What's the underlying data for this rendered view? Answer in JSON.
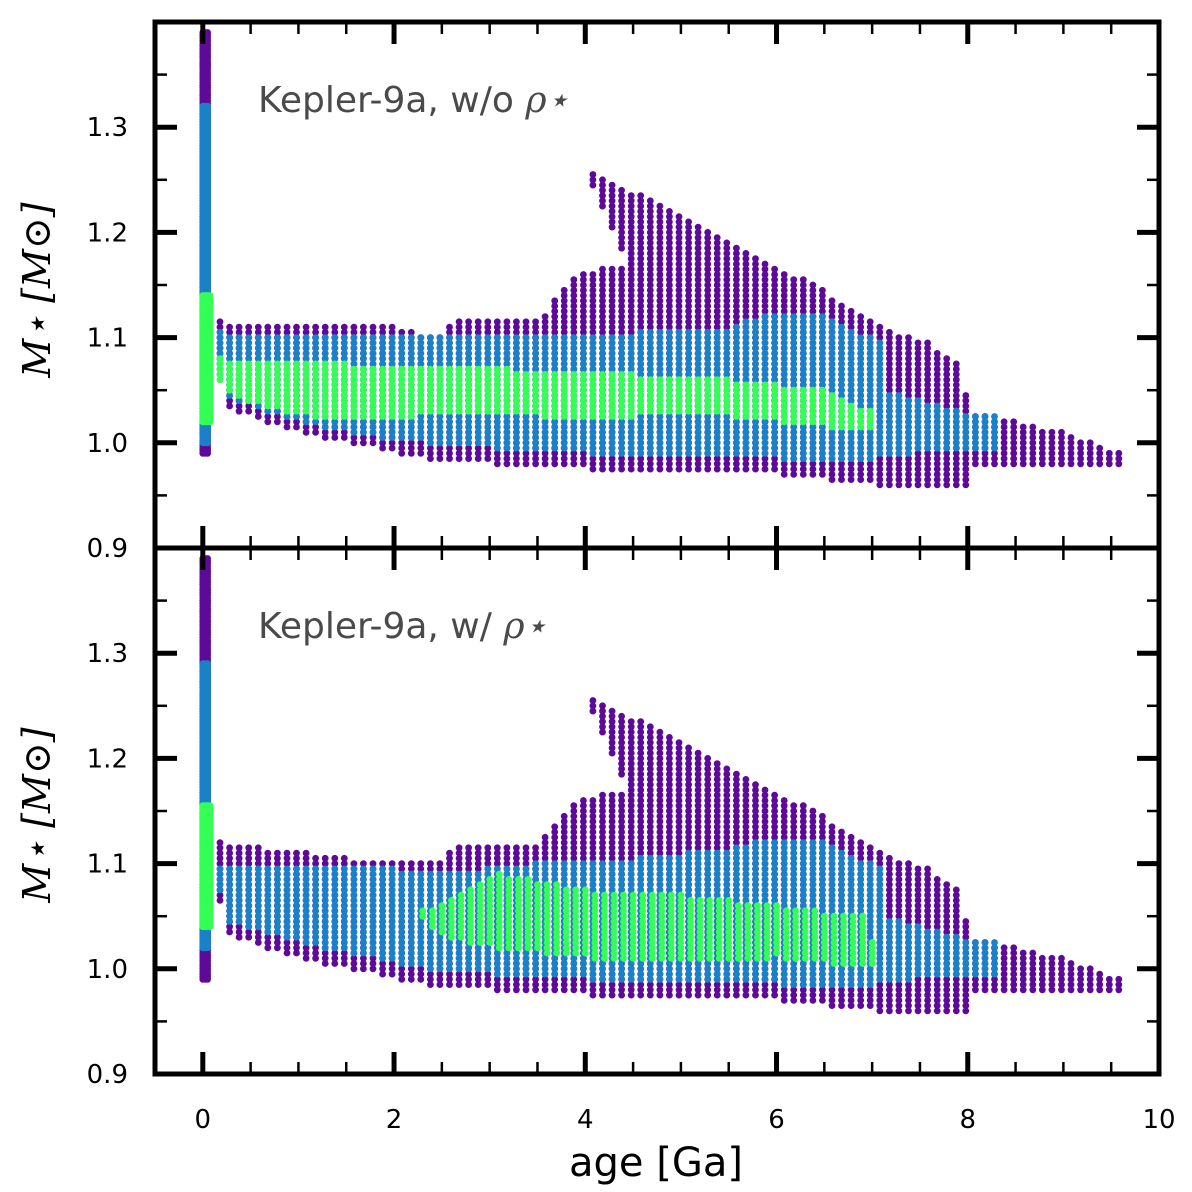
{
  "chart_data": {
    "type": "scatter",
    "xlabel": "age [Ga]",
    "xlim": [
      -0.5,
      10
    ],
    "x_ticks": [
      "0",
      "2",
      "4",
      "6",
      "8",
      "10"
    ],
    "colors": {
      "purple": "#5e0a99",
      "blue": "#1a80c8",
      "green": "#33ff55"
    },
    "panels": [
      {
        "annotation": "Kepler-9a, w/o",
        "annotation_symbol": "ρ⋆",
        "ylabel": "M⋆ [M⊙]",
        "ylim": [
          0.9,
          1.4
        ],
        "y_ticks": [
          "0.9",
          "1.0",
          "1.1",
          "1.2",
          "1.3"
        ],
        "series": [
          {
            "name": "purple",
            "polygons": [
              [
                [
                  0.18,
                  1.115
                ],
                [
                  2.0,
                  1.11
                ],
                [
                  2.5,
                  1.1
                ],
                [
                  2.6,
                  1.115
                ],
                [
                  3.5,
                  1.115
                ],
                [
                  3.9,
                  1.16
                ],
                [
                  4.3,
                  1.17
                ],
                [
                  4.5,
                  1.16
                ],
                [
                  4.3,
                  1.2
                ],
                [
                  4.0,
                  1.26
                ],
                [
                  4.7,
                  1.23
                ],
                [
                  5.5,
                  1.19
                ],
                [
                  6.4,
                  1.15
                ],
                [
                  7.1,
                  1.11
                ],
                [
                  7.6,
                  1.095
                ],
                [
                  7.95,
                  1.07
                ],
                [
                  8.0,
                  1.03
                ],
                [
                  9.0,
                  1.01
                ],
                [
                  9.6,
                  0.99
                ],
                [
                  9.6,
                  0.98
                ],
                [
                  8.0,
                  0.975
                ],
                [
                  8.0,
                  0.96
                ],
                [
                  7.0,
                  0.96
                ],
                [
                  6.0,
                  0.97
                ],
                [
                  5.0,
                  0.975
                ],
                [
                  4.0,
                  0.975
                ],
                [
                  3.0,
                  0.98
                ],
                [
                  2.3,
                  0.985
                ],
                [
                  1.8,
                  0.995
                ],
                [
                  1.2,
                  1.005
                ],
                [
                  0.6,
                  1.02
                ],
                [
                  0.25,
                  1.035
                ],
                [
                  0.18,
                  1.06
                ]
              ],
              [
                [
                  0.0,
                  1.39
                ],
                [
                  0.07,
                  1.39
                ],
                [
                  0.07,
                  0.99
                ],
                [
                  0.0,
                  0.99
                ]
              ]
            ]
          },
          {
            "name": "blue",
            "polygons": [
              [
                [
                  0.18,
                  1.105
                ],
                [
                  2.0,
                  1.1
                ],
                [
                  2.6,
                  1.1
                ],
                [
                  3.4,
                  1.1
                ],
                [
                  4.5,
                  1.105
                ],
                [
                  5.5,
                  1.11
                ],
                [
                  6.0,
                  1.125
                ],
                [
                  6.5,
                  1.12
                ],
                [
                  7.1,
                  1.095
                ],
                [
                  7.1,
                  1.05
                ],
                [
                  7.95,
                  1.03
                ],
                [
                  8.3,
                  1.025
                ],
                [
                  8.3,
                  0.995
                ],
                [
                  7.95,
                  0.995
                ],
                [
                  7.0,
                  0.985
                ],
                [
                  6.0,
                  0.985
                ],
                [
                  5.0,
                  0.99
                ],
                [
                  4.0,
                  0.99
                ],
                [
                  3.0,
                  0.995
                ],
                [
                  2.3,
                  1.0
                ],
                [
                  1.8,
                  1.005
                ],
                [
                  1.2,
                  1.015
                ],
                [
                  0.6,
                  1.03
                ],
                [
                  0.25,
                  1.045
                ],
                [
                  0.18,
                  1.07
                ]
              ],
              [
                [
                  0.0,
                  1.32
                ],
                [
                  0.07,
                  1.32
                ],
                [
                  0.07,
                  1.0
                ],
                [
                  0.0,
                  1.0
                ]
              ]
            ]
          },
          {
            "name": "green",
            "polygons": [
              [
                [
                  0.18,
                  1.08
                ],
                [
                  1.5,
                  1.075
                ],
                [
                  2.5,
                  1.07
                ],
                [
                  3.2,
                  1.07
                ],
                [
                  4.5,
                  1.065
                ],
                [
                  5.5,
                  1.06
                ],
                [
                  6.5,
                  1.05
                ],
                [
                  7.0,
                  1.03
                ],
                [
                  7.0,
                  1.01
                ],
                [
                  6.0,
                  1.02
                ],
                [
                  5.0,
                  1.03
                ],
                [
                  4.0,
                  1.02
                ],
                [
                  3.0,
                  1.03
                ],
                [
                  2.2,
                  1.025
                ],
                [
                  1.5,
                  1.02
                ],
                [
                  0.8,
                  1.03
                ],
                [
                  0.3,
                  1.045
                ],
                [
                  0.18,
                  1.055
                ]
              ],
              [
                [
                  0.0,
                  1.14
                ],
                [
                  0.08,
                  1.14
                ],
                [
                  0.08,
                  1.02
                ],
                [
                  0.0,
                  1.02
                ]
              ]
            ]
          }
        ]
      },
      {
        "annotation": "Kepler-9a, w/",
        "annotation_symbol": "ρ⋆",
        "ylabel": "M⋆ [M⊙]",
        "ylim": [
          0.9,
          1.4
        ],
        "y_ticks": [
          "0.9",
          "1.0",
          "1.1",
          "1.2",
          "1.3"
        ],
        "series": [
          {
            "name": "purple",
            "polygons": [
              [
                [
                  0.18,
                  1.12
                ],
                [
                  2.0,
                  1.1
                ],
                [
                  2.5,
                  1.1
                ],
                [
                  2.6,
                  1.115
                ],
                [
                  3.5,
                  1.12
                ],
                [
                  3.9,
                  1.16
                ],
                [
                  4.3,
                  1.17
                ],
                [
                  4.5,
                  1.16
                ],
                [
                  4.3,
                  1.2
                ],
                [
                  4.0,
                  1.26
                ],
                [
                  4.7,
                  1.23
                ],
                [
                  5.5,
                  1.19
                ],
                [
                  6.4,
                  1.15
                ],
                [
                  7.1,
                  1.11
                ],
                [
                  7.6,
                  1.095
                ],
                [
                  7.95,
                  1.07
                ],
                [
                  8.0,
                  1.03
                ],
                [
                  9.0,
                  1.01
                ],
                [
                  9.6,
                  0.99
                ],
                [
                  9.6,
                  0.98
                ],
                [
                  8.0,
                  0.975
                ],
                [
                  8.0,
                  0.96
                ],
                [
                  7.0,
                  0.96
                ],
                [
                  6.0,
                  0.97
                ],
                [
                  5.0,
                  0.975
                ],
                [
                  4.0,
                  0.975
                ],
                [
                  3.0,
                  0.98
                ],
                [
                  2.3,
                  0.985
                ],
                [
                  1.8,
                  0.995
                ],
                [
                  1.2,
                  1.005
                ],
                [
                  0.6,
                  1.02
                ],
                [
                  0.25,
                  1.035
                ],
                [
                  0.18,
                  1.06
                ]
              ],
              [
                [
                  0.0,
                  1.39
                ],
                [
                  0.07,
                  1.39
                ],
                [
                  0.07,
                  0.99
                ],
                [
                  0.0,
                  0.99
                ]
              ]
            ]
          },
          {
            "name": "blue",
            "polygons": [
              [
                [
                  0.18,
                  1.095
                ],
                [
                  2.0,
                  1.095
                ],
                [
                  2.5,
                  1.09
                ],
                [
                  3.4,
                  1.1
                ],
                [
                  4.5,
                  1.105
                ],
                [
                  5.5,
                  1.115
                ],
                [
                  6.0,
                  1.125
                ],
                [
                  6.5,
                  1.12
                ],
                [
                  7.1,
                  1.095
                ],
                [
                  7.1,
                  1.05
                ],
                [
                  7.95,
                  1.03
                ],
                [
                  8.3,
                  1.025
                ],
                [
                  8.3,
                  0.995
                ],
                [
                  7.95,
                  0.995
                ],
                [
                  7.0,
                  0.985
                ],
                [
                  6.0,
                  0.985
                ],
                [
                  5.0,
                  0.99
                ],
                [
                  4.0,
                  0.99
                ],
                [
                  3.0,
                  0.995
                ],
                [
                  2.3,
                  1.0
                ],
                [
                  1.8,
                  1.01
                ],
                [
                  1.2,
                  1.02
                ],
                [
                  0.6,
                  1.035
                ],
                [
                  0.25,
                  1.045
                ],
                [
                  0.18,
                  1.07
                ]
              ],
              [
                [
                  0.0,
                  1.29
                ],
                [
                  0.07,
                  1.29
                ],
                [
                  0.07,
                  1.02
                ],
                [
                  0.0,
                  1.02
                ]
              ]
            ]
          },
          {
            "name": "green",
            "polygons": [
              [
                [
                  2.3,
                  1.055
                ],
                [
                  2.8,
                  1.075
                ],
                [
                  3.1,
                  1.09
                ],
                [
                  4.0,
                  1.075
                ],
                [
                  5.0,
                  1.07
                ],
                [
                  6.0,
                  1.06
                ],
                [
                  6.9,
                  1.05
                ],
                [
                  7.0,
                  1.025
                ],
                [
                  7.0,
                  1.0
                ],
                [
                  6.0,
                  1.01
                ],
                [
                  5.0,
                  1.005
                ],
                [
                  4.0,
                  1.01
                ],
                [
                  3.0,
                  1.02
                ],
                [
                  2.5,
                  1.03
                ],
                [
                  2.3,
                  1.045
                ]
              ],
              [
                [
                  0.0,
                  1.155
                ],
                [
                  0.08,
                  1.155
                ],
                [
                  0.08,
                  1.04
                ],
                [
                  0.0,
                  1.04
                ]
              ]
            ]
          }
        ]
      }
    ]
  }
}
